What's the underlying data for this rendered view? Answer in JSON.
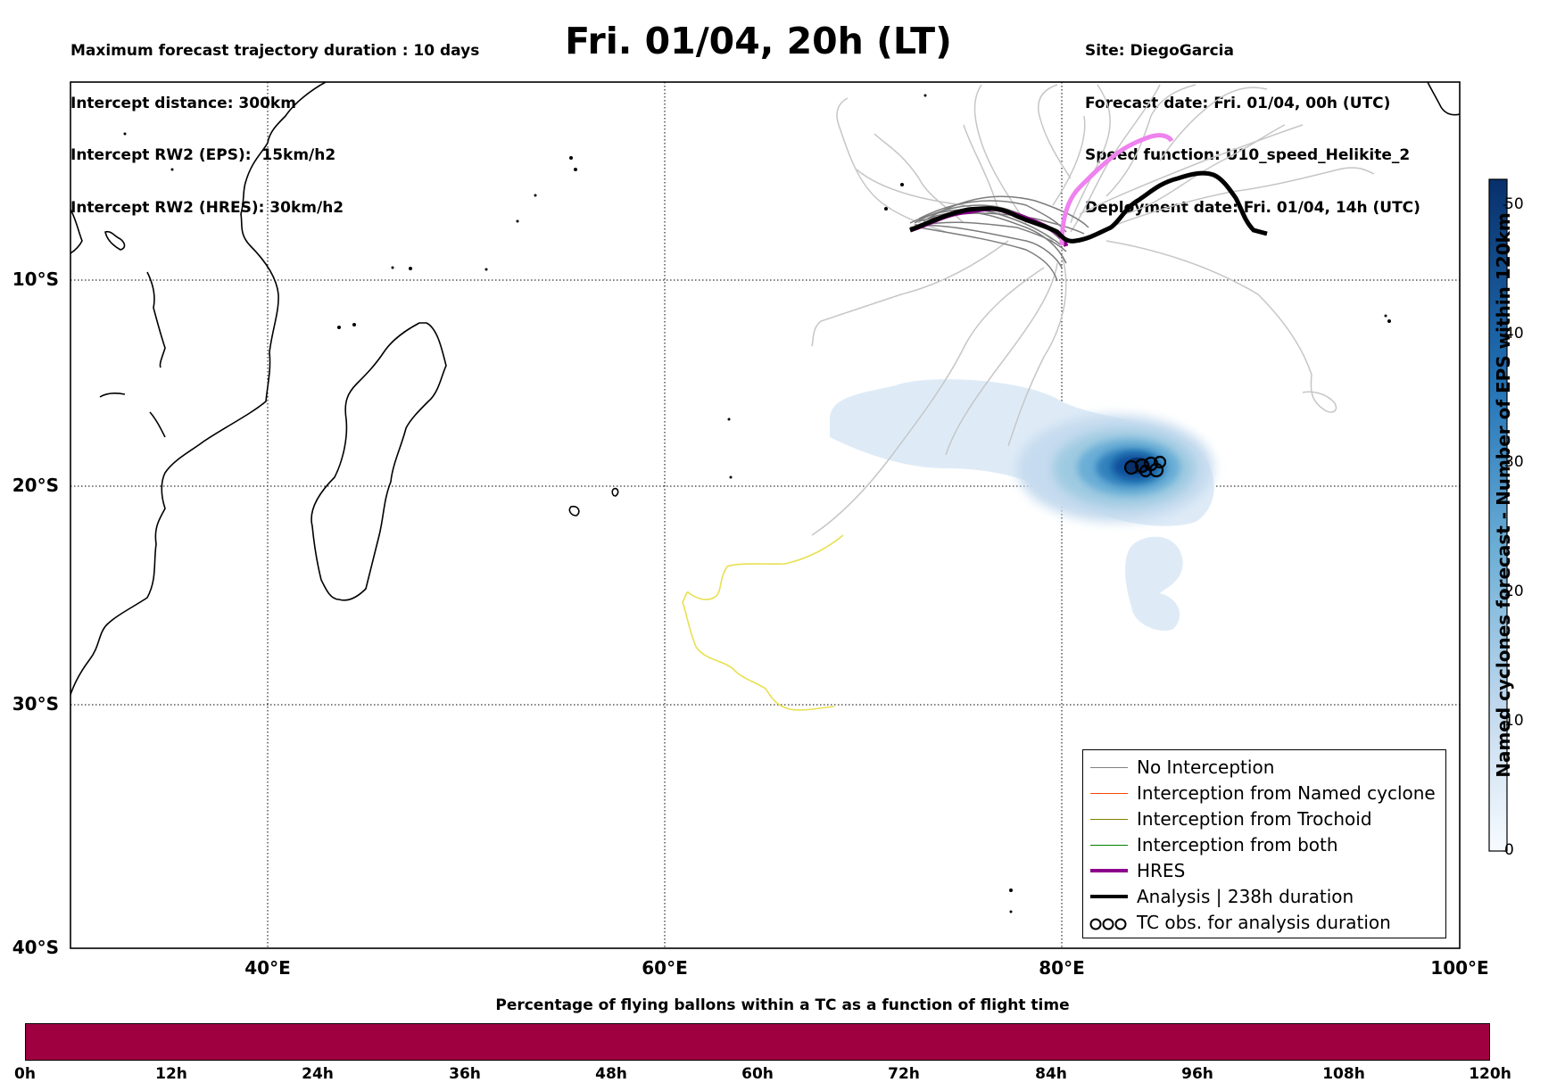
{
  "header_left": [
    "Maximum forecast trajectory duration : 10 days",
    "Intercept distance: 300km",
    "Intercept RW2 (EPS):  15km/h2",
    "Intercept RW2 (HRES): 30km/h2"
  ],
  "title": "Fri. 01/04, 20h (LT)",
  "header_right": [
    "Site: DiegoGarcia",
    "Forecast date: Fri. 01/04, 00h (UTC)",
    "Speed function: U10_speed_Helikite_2",
    "Deployment date: Fri. 01/04, 14h (UTC)"
  ],
  "map": {
    "lon_range": [
      30,
      100
    ],
    "lat_range": [
      -40,
      0
    ],
    "lat_labels": [
      "10°S",
      "20°S",
      "30°S",
      "40°S"
    ],
    "lon_labels": [
      "40°E",
      "60°E",
      "80°E",
      "100°E"
    ],
    "gridlines": "dotted",
    "site": "DiegoGarcia"
  },
  "legend": {
    "items": [
      {
        "label": "No Interception",
        "color": "#808080",
        "style": "thin-line"
      },
      {
        "label": "Interception from Named cyclone",
        "color": "#ff4500",
        "style": "thin-line"
      },
      {
        "label": "Interception from Trochoid",
        "color": "#808000",
        "style": "thin-line"
      },
      {
        "label": "Interception from both",
        "color": "#008000",
        "style": "thin-line"
      },
      {
        "label": "HRES",
        "color": "#8b008b",
        "style": "thick-line"
      },
      {
        "label": "Analysis | 238h duration",
        "color": "#000000",
        "style": "thick-line"
      },
      {
        "label": "TC obs. for analysis duration",
        "color": "#000000",
        "style": "cyclone-symbols",
        "icon": "cyclone-icon"
      }
    ]
  },
  "colorbar": {
    "label": "Named cyclones forecast - Number of EPS within 120km",
    "ticks": [
      "0",
      "10",
      "20",
      "30",
      "40",
      "50"
    ],
    "range": [
      0,
      52
    ],
    "cmap": "Blues"
  },
  "bottom_bar": {
    "title": "Percentage of flying ballons within a TC as a function of flight time",
    "ticks": [
      "0h",
      "12h",
      "24h",
      "36h",
      "48h",
      "60h",
      "72h",
      "84h",
      "96h",
      "108h",
      "120h"
    ],
    "fill_color": "#9e0040",
    "percentage": 0
  },
  "colors": {
    "no_interception": "#808080",
    "hres": "#8b008b",
    "hres_extension": "#ee82ee",
    "analysis": "#000000",
    "yellow_track": "#e8e050"
  }
}
